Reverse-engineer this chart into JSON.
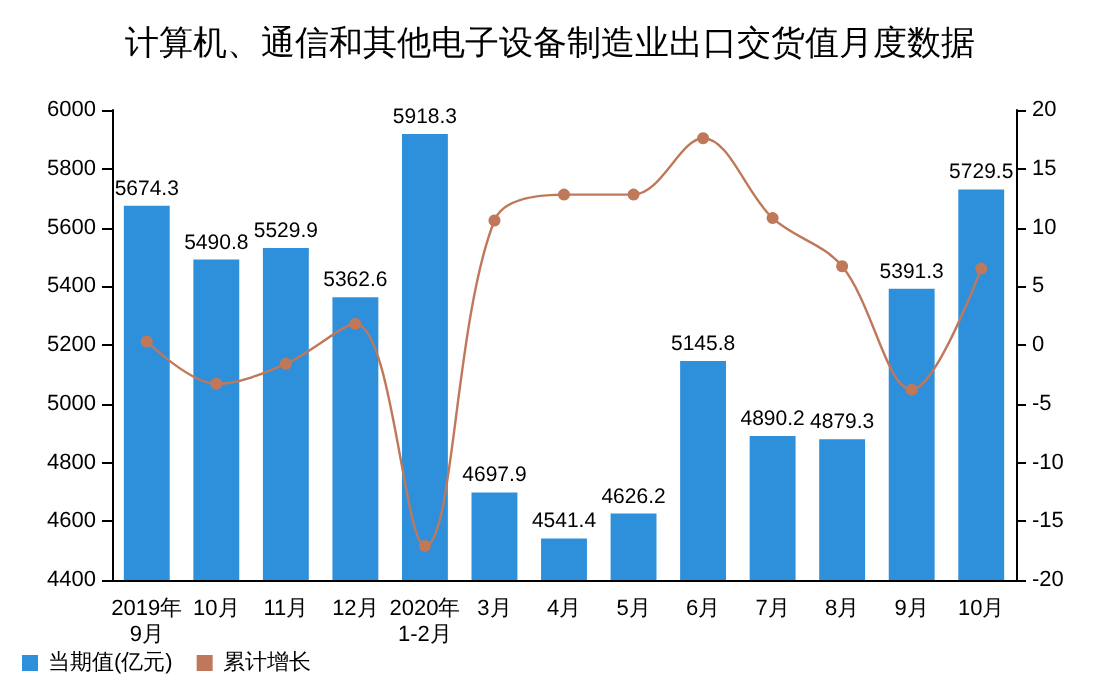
{
  "chart_data": {
    "type": "bar",
    "title": "计算机、通信和其他电子设备制造业出口交货值月度数据",
    "categories": [
      "2019年\n9月",
      "10月",
      "11月",
      "12月",
      "2020年\n1-2月",
      "3月",
      "4月",
      "5月",
      "6月",
      "7月",
      "8月",
      "9月",
      "10月"
    ],
    "series": [
      {
        "name": "当期值(亿元)",
        "color": "#2e8fdb",
        "values": [
          5674.3,
          5490.8,
          5529.9,
          5362.6,
          5918.3,
          4697.9,
          4541.4,
          4626.2,
          5145.8,
          4890.2,
          4879.3,
          5391.3,
          5729.5
        ],
        "value_labels": [
          "5674.3",
          "5490.8",
          "5529.9",
          "5362.6",
          "5918.3",
          "4697.9",
          "4541.4",
          "4626.2",
          "5145.8",
          "4890.2",
          "4879.3",
          "5391.3",
          "5729.5"
        ]
      },
      {
        "name": "累计增长",
        "type": "line",
        "axis": "y2",
        "color": "#c0785a",
        "values": [
          0.3,
          -3.3,
          -1.6,
          1.8,
          -17.1,
          10.6,
          12.8,
          12.8,
          17.6,
          10.8,
          6.7,
          -3.8,
          6.5
        ]
      }
    ],
    "ylim": [
      4400,
      6000
    ],
    "yticks": [
      4400,
      4600,
      4800,
      5000,
      5200,
      5400,
      5600,
      5800,
      6000
    ],
    "y2lim": [
      -20,
      20
    ],
    "y2ticks": [
      -20,
      -15,
      -10,
      -5,
      0,
      5,
      10,
      15,
      20
    ],
    "grid": false,
    "legend": "bottom left",
    "marker": "circle"
  }
}
